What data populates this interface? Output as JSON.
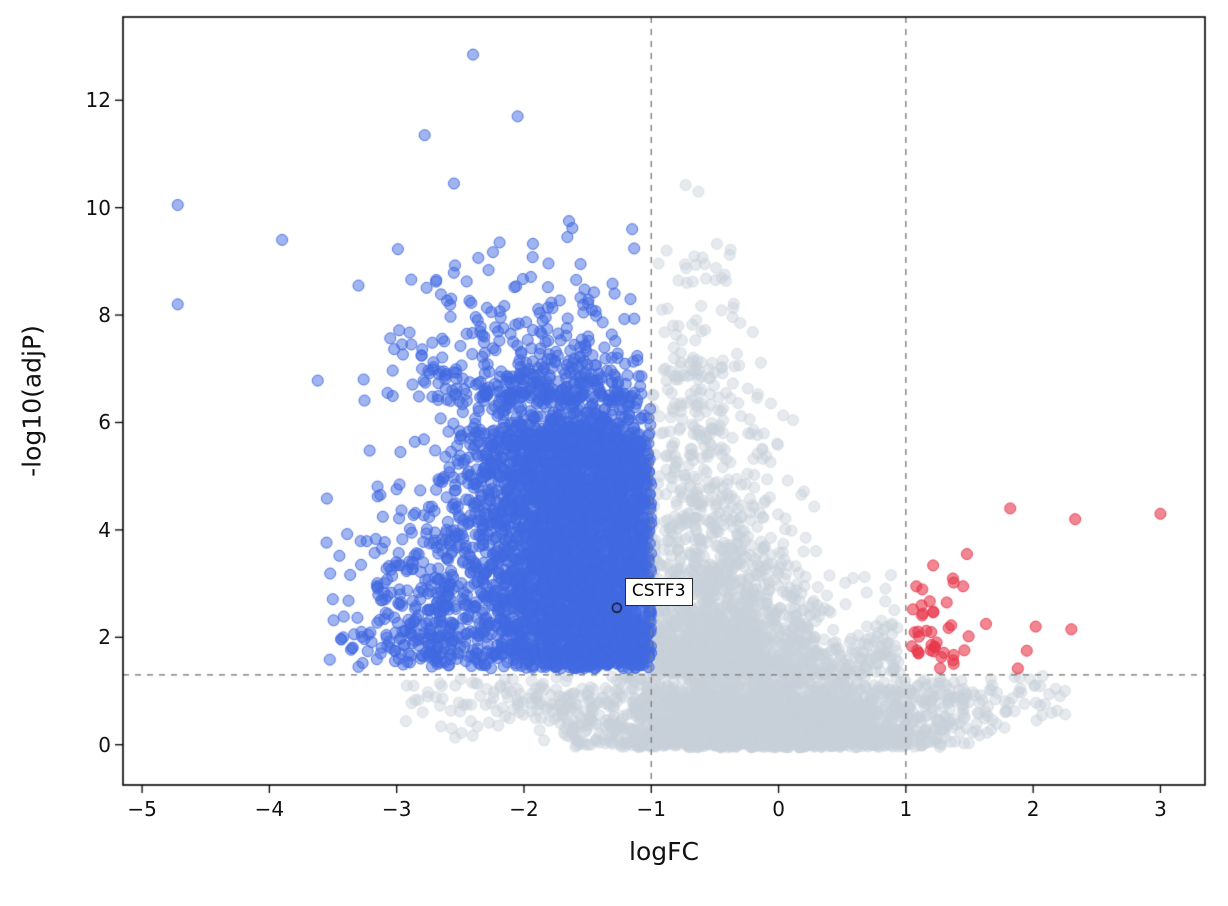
{
  "chart_data": {
    "type": "scatter",
    "subtype": "volcano-plot",
    "title": "",
    "xlabel": "logFC",
    "ylabel": "-log10(adjP)",
    "xlim": [
      -5.15,
      3.35
    ],
    "ylim": [
      -0.75,
      13.55
    ],
    "xtick_values": [
      -5,
      -4,
      -3,
      -2,
      -1,
      0,
      1,
      2,
      3
    ],
    "xtick_labels": [
      "−5",
      "−4",
      "−3",
      "−2",
      "−1",
      "0",
      "1",
      "2",
      "3"
    ],
    "ytick_values": [
      0,
      2,
      4,
      6,
      8,
      10,
      12
    ],
    "ytick_labels": [
      "0",
      "2",
      "4",
      "6",
      "8",
      "10",
      "12"
    ],
    "grid": false,
    "legend": "none",
    "thresholds": {
      "vlines": [
        -1,
        1
      ],
      "hline": 1.301,
      "line_color": "#7f7f7f",
      "dash": [
        6,
        6
      ]
    },
    "annotation": {
      "label": "CSTF3",
      "x": -1.27,
      "y": 2.55
    },
    "style": {
      "marker_radius": 5.5,
      "groups": {
        "nonsig": {
          "hex": "#C8D0DA",
          "alpha": 0.45,
          "edge_alpha": 0.5
        },
        "down": {
          "hex": "#4169E1",
          "alpha": 0.5,
          "edge_alpha": 0.85
        },
        "up": {
          "hex": "#E8374B",
          "alpha": 0.6,
          "edge_alpha": 0.85
        }
      },
      "frame_color": "#000000"
    },
    "seed": 12,
    "clusters": [
      {
        "name": "nonsig-floor-mid",
        "group": "nonsig",
        "n": 2300,
        "x": {
          "type": "normal",
          "mu": -0.05,
          "sigma": 0.62,
          "min": -1.75,
          "max": 1.75
        },
        "y": {
          "type": "halfnormal",
          "base": -0.05,
          "sigma": 0.55,
          "dir": 1,
          "max": 1.28
        }
      },
      {
        "name": "nonsig-floor-wide",
        "group": "nonsig",
        "n": 650,
        "x": {
          "type": "normal",
          "mu": -0.25,
          "sigma": 1.35,
          "min": -3.05,
          "max": 2.3
        },
        "y": {
          "type": "normal",
          "mu": 0.85,
          "sigma": 0.3,
          "min": 0.05,
          "max": 1.28
        }
      },
      {
        "name": "nonsig-plume-dense",
        "group": "nonsig",
        "n": 1300,
        "x": {
          "type": "normal",
          "mu": -0.5,
          "sigma": 0.4,
          "min": -1.0,
          "max": 0.95
        },
        "y": {
          "type": "exp",
          "base": 1.3,
          "mean": 1.15,
          "max": 6.6
        }
      },
      {
        "name": "nonsig-plume-mid",
        "group": "nonsig",
        "n": 240,
        "x": {
          "type": "normal",
          "mu": -0.62,
          "sigma": 0.26,
          "min": -1.0,
          "max": 0.3
        },
        "y": {
          "type": "uniform",
          "min": 3.0,
          "max": 7.2
        }
      },
      {
        "name": "nonsig-plume-high",
        "group": "nonsig",
        "n": 50,
        "x": {
          "type": "normal",
          "mu": -0.6,
          "sigma": 0.17,
          "min": -0.98,
          "max": -0.2
        },
        "y": {
          "type": "uniform",
          "min": 6.8,
          "max": 9.4
        }
      },
      {
        "name": "nonsig-right-shoulder",
        "group": "nonsig",
        "n": 170,
        "x": {
          "type": "uniform",
          "min": 0.05,
          "max": 0.95
        },
        "y": {
          "type": "exp",
          "base": 1.3,
          "mean": 0.55,
          "max": 3.4
        }
      },
      {
        "name": "down-block",
        "group": "down",
        "n": 3400,
        "x": {
          "type": "normal",
          "mu": -1.5,
          "sigma": 0.52,
          "min": -2.7,
          "max": -1.0
        },
        "y": {
          "type": "uniform",
          "min": 1.42,
          "max": 5.6
        }
      },
      {
        "name": "down-block-top",
        "group": "down",
        "n": 480,
        "x": {
          "type": "normal",
          "mu": -1.6,
          "sigma": 0.46,
          "min": -2.62,
          "max": -1.0
        },
        "y": {
          "type": "exp",
          "base": 5.55,
          "mean": 0.42,
          "max": 6.8
        }
      },
      {
        "name": "down-halo-left",
        "group": "down",
        "n": 270,
        "x": {
          "type": "halfnormal",
          "base": -2.55,
          "sigma": 0.42,
          "dir": -1,
          "min": -3.62
        },
        "y": {
          "type": "halfnormal",
          "base": 1.45,
          "sigma": 1.7,
          "dir": 1,
          "max": 8.6
        }
      },
      {
        "name": "down-top-scatter",
        "group": "down",
        "n": 370,
        "x": {
          "type": "normal",
          "mu": -1.9,
          "sigma": 0.55,
          "min": -3.35,
          "max": -1.02
        },
        "y": {
          "type": "exp",
          "base": 6.4,
          "mean": 0.9,
          "max": 9.78
        }
      },
      {
        "name": "up-cluster",
        "group": "up",
        "n": 38,
        "x": {
          "type": "halfnormal",
          "base": 1.04,
          "sigma": 0.22,
          "dir": 1,
          "max": 1.62
        },
        "y": {
          "type": "halfnormal",
          "base": 1.38,
          "sigma": 0.8,
          "dir": 1,
          "max": 3.6
        }
      }
    ],
    "outliers": {
      "down": [
        [
          -4.72,
          10.05
        ],
        [
          -4.72,
          8.2
        ],
        [
          -3.9,
          9.4
        ],
        [
          -3.62,
          6.78
        ],
        [
          -3.3,
          8.55
        ],
        [
          -2.4,
          12.85
        ],
        [
          -2.05,
          11.7
        ],
        [
          -2.78,
          11.35
        ],
        [
          -2.55,
          10.45
        ],
        [
          -1.62,
          9.62
        ],
        [
          -1.15,
          9.6
        ],
        [
          -3.42,
          2.0
        ],
        [
          -3.28,
          3.35
        ],
        [
          -3.3,
          1.45
        ]
      ],
      "up": [
        [
          3.0,
          4.3
        ],
        [
          2.33,
          4.2
        ],
        [
          1.82,
          4.4
        ],
        [
          2.3,
          2.15
        ],
        [
          2.02,
          2.2
        ],
        [
          1.95,
          1.75
        ],
        [
          1.63,
          2.25
        ],
        [
          1.48,
          3.55
        ],
        [
          1.45,
          2.95
        ],
        [
          1.88,
          1.42
        ]
      ],
      "nonsig": [
        [
          -0.73,
          10.42
        ],
        [
          -0.63,
          10.3
        ],
        [
          -0.88,
          9.2
        ],
        [
          1.9,
          1.05
        ],
        [
          2.25,
          1.0
        ],
        [
          1.58,
          0.78
        ],
        [
          -2.92,
          1.1
        ],
        [
          0.85,
          1.9
        ],
        [
          1.02,
          0.95
        ]
      ]
    }
  }
}
